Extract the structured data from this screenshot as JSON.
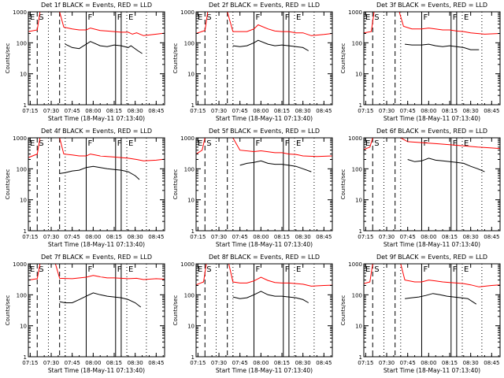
{
  "panels": [
    {
      "title": "Det 1f BLACK = Events, RED = LLD"
    },
    {
      "title": "Det 2f BLACK = Events, RED = LLD"
    },
    {
      "title": "Det 3f BLACK = Events, RED = LLD"
    },
    {
      "title": "Det 4f BLACK = Events, RED = LLD"
    },
    {
      "title": "Det 5f BLACK = Events, RED = LLD"
    },
    {
      "title": "Det 6f BLACK = Events, RED = LLD"
    },
    {
      "title": "Det 7f BLACK = Events, RED = LLD"
    },
    {
      "title": "Det 8f BLACK = Events, RED = LLD"
    },
    {
      "title": "Det 9f BLACK = Events, RED = LLD"
    }
  ],
  "chart_data": {
    "type": "line",
    "xlabel": "Start Time (18-May-11 07:13:40)",
    "ylabel": "Counts/sec",
    "y_scale": "log",
    "xlim": [
      "07:13:40",
      "08:51:00"
    ],
    "ylim": [
      1,
      1000
    ],
    "x_ticks": [
      "07:15",
      "07:30",
      "07:45",
      "08:00",
      "08:15",
      "08:30",
      "08:45"
    ],
    "y_ticks": [
      "1",
      "10",
      "100",
      "1000"
    ],
    "colors": {
      "events": "#000000",
      "lld": "#ff0000"
    },
    "markers": [
      {
        "label": "E",
        "time": "07:13:40",
        "style": "dotted"
      },
      {
        "label": "S",
        "time": "07:20",
        "style": "dashed"
      },
      {
        "label": "",
        "time": "07:28",
        "style": "dotted"
      },
      {
        "label": "",
        "time": "07:36",
        "style": "dashed"
      },
      {
        "label": "",
        "time": "07:40",
        "style": "dotted"
      },
      {
        "label": "F",
        "time": "07:55",
        "style": "solid"
      },
      {
        "label": "F",
        "time": "08:16",
        "style": "solid"
      },
      {
        "label": "",
        "time": "08:20",
        "style": "solid"
      },
      {
        "label": "E",
        "time": "08:24",
        "style": "dotted"
      },
      {
        "label": "",
        "time": "08:38",
        "style": "dotted"
      }
    ],
    "series": [
      {
        "detector": "1f",
        "lld_x": [
          "07:13:40",
          "07:20",
          "07:22",
          "07:24",
          "07:36",
          "07:39",
          "07:45",
          "07:50",
          "07:55",
          "07:58",
          "08:05",
          "08:10",
          "08:15",
          "08:20",
          "08:25",
          "08:28",
          "08:31",
          "08:36",
          "08:45",
          "08:51"
        ],
        "lld_y": [
          230,
          260,
          1200,
          1200,
          1200,
          320,
          280,
          260,
          260,
          300,
          250,
          240,
          230,
          220,
          220,
          190,
          210,
          170,
          190,
          205
        ],
        "events_x": [
          "07:40",
          "07:45",
          "07:50",
          "07:55",
          "07:58",
          "08:05",
          "08:10",
          "08:15",
          "08:20",
          "08:25",
          "08:27",
          "08:32",
          "08:35"
        ],
        "events_y": [
          90,
          70,
          65,
          90,
          110,
          80,
          75,
          85,
          80,
          70,
          80,
          55,
          45
        ]
      },
      {
        "detector": "2f",
        "lld_x": [
          "07:13:40",
          "07:20",
          "07:22",
          "07:24",
          "07:36",
          "07:40",
          "07:45",
          "07:50",
          "07:55",
          "07:58",
          "08:05",
          "08:10",
          "08:15",
          "08:20",
          "08:25",
          "08:30",
          "08:36",
          "08:45",
          "08:51"
        ],
        "lld_y": [
          200,
          250,
          1200,
          1200,
          1200,
          230,
          230,
          230,
          280,
          380,
          280,
          240,
          230,
          230,
          210,
          210,
          170,
          185,
          200
        ],
        "events_x": [
          "07:40",
          "07:45",
          "07:50",
          "07:55",
          "07:58",
          "08:05",
          "08:10",
          "08:15",
          "08:20",
          "08:25",
          "08:30",
          "08:34"
        ],
        "events_y": [
          80,
          75,
          80,
          100,
          120,
          90,
          80,
          85,
          80,
          75,
          70,
          55
        ]
      },
      {
        "detector": "3f",
        "lld_x": [
          "07:13:40",
          "07:19",
          "07:21",
          "07:23",
          "07:39",
          "07:42",
          "07:48",
          "07:55",
          "08:00",
          "08:10",
          "08:15",
          "08:20",
          "08:25",
          "08:30",
          "08:40",
          "08:51"
        ],
        "lld_y": [
          210,
          230,
          1200,
          1200,
          1200,
          340,
          280,
          280,
          300,
          260,
          260,
          240,
          230,
          210,
          190,
          200
        ],
        "events_x": [
          "07:43",
          "07:48",
          "07:55",
          "08:00",
          "08:05",
          "08:10",
          "08:15",
          "08:20",
          "08:25",
          "08:30",
          "08:36"
        ],
        "events_y": [
          90,
          85,
          85,
          90,
          80,
          75,
          80,
          75,
          70,
          60,
          60
        ]
      },
      {
        "detector": "4f",
        "lld_x": [
          "07:13:40",
          "07:20",
          "07:22",
          "07:24",
          "07:36",
          "07:39",
          "07:45",
          "07:50",
          "07:55",
          "07:58",
          "08:05",
          "08:10",
          "08:15",
          "08:20",
          "08:25",
          "08:31",
          "08:36",
          "08:45",
          "08:51"
        ],
        "lld_y": [
          230,
          300,
          1200,
          1200,
          1200,
          300,
          280,
          260,
          260,
          300,
          260,
          250,
          240,
          230,
          220,
          200,
          180,
          190,
          205
        ],
        "events_x": [
          "07:36",
          "07:40",
          "07:45",
          "07:50",
          "07:55",
          "08:00",
          "08:05",
          "08:10",
          "08:15",
          "08:20",
          "08:25",
          "08:30",
          "08:33"
        ],
        "events_y": [
          70,
          75,
          85,
          90,
          110,
          120,
          110,
          100,
          95,
          90,
          80,
          60,
          45
        ]
      },
      {
        "detector": "5f",
        "lld_x": [
          "07:13:40",
          "07:18",
          "07:20",
          "07:22",
          "07:40",
          "07:45",
          "07:55",
          "08:00",
          "08:10",
          "08:15",
          "08:20",
          "08:25",
          "08:30",
          "08:40",
          "08:51"
        ],
        "lld_y": [
          300,
          400,
          1200,
          1200,
          1200,
          400,
          360,
          380,
          330,
          330,
          300,
          290,
          260,
          250,
          260
        ],
        "events_x": [
          "07:45",
          "07:50",
          "07:55",
          "08:00",
          "08:05",
          "08:10",
          "08:15",
          "08:20",
          "08:25",
          "08:30",
          "08:36"
        ],
        "events_y": [
          130,
          150,
          160,
          180,
          150,
          140,
          140,
          130,
          120,
          100,
          80
        ]
      },
      {
        "detector": "6f",
        "lld_x": [
          "07:13:40",
          "07:18",
          "07:20",
          "07:22",
          "07:40",
          "07:45",
          "07:55",
          "08:05",
          "08:15",
          "08:25",
          "08:35",
          "08:45",
          "08:51"
        ],
        "lld_y": [
          420,
          500,
          1200,
          1200,
          1200,
          750,
          700,
          650,
          600,
          550,
          500,
          470,
          450
        ],
        "events_x": [
          "07:45",
          "07:50",
          "07:55",
          "08:00",
          "08:05",
          "08:10",
          "08:15",
          "08:20",
          "08:25",
          "08:30",
          "08:35",
          "08:40"
        ],
        "events_y": [
          200,
          170,
          180,
          220,
          190,
          180,
          170,
          160,
          150,
          120,
          100,
          80
        ]
      },
      {
        "detector": "7f",
        "lld_x": [
          "07:13:40",
          "07:20",
          "07:22",
          "07:24",
          "07:33",
          "07:36",
          "07:45",
          "07:55",
          "08:00",
          "08:05",
          "08:10",
          "08:15",
          "08:20",
          "08:25",
          "08:31",
          "08:36",
          "08:45",
          "08:51"
        ],
        "lld_y": [
          300,
          330,
          1200,
          1200,
          1200,
          340,
          330,
          370,
          420,
          380,
          350,
          350,
          340,
          330,
          340,
          310,
          330,
          320
        ],
        "events_x": [
          "07:36",
          "07:40",
          "07:45",
          "07:50",
          "07:55",
          "08:00",
          "08:05",
          "08:10",
          "08:15",
          "08:20",
          "08:25",
          "08:30",
          "08:34"
        ],
        "events_y": [
          60,
          55,
          55,
          70,
          90,
          115,
          100,
          90,
          85,
          80,
          70,
          55,
          40
        ]
      },
      {
        "detector": "8f",
        "lld_x": [
          "07:13:40",
          "07:19",
          "07:21",
          "07:23",
          "07:37",
          "07:40",
          "07:45",
          "07:50",
          "07:55",
          "08:00",
          "08:05",
          "08:10",
          "08:15",
          "08:20",
          "08:25",
          "08:30",
          "08:36",
          "08:45",
          "08:51"
        ],
        "lld_y": [
          210,
          260,
          1200,
          1200,
          1200,
          260,
          240,
          240,
          280,
          370,
          290,
          250,
          240,
          240,
          230,
          220,
          190,
          200,
          205
        ],
        "events_x": [
          "07:40",
          "07:45",
          "07:50",
          "07:55",
          "08:00",
          "08:05",
          "08:10",
          "08:15",
          "08:20",
          "08:25",
          "08:30",
          "08:34"
        ],
        "events_y": [
          85,
          75,
          80,
          100,
          130,
          100,
          90,
          90,
          85,
          80,
          70,
          55
        ]
      },
      {
        "detector": "9f",
        "lld_x": [
          "07:13:40",
          "07:18",
          "07:20",
          "07:22",
          "07:40",
          "07:43",
          "07:50",
          "07:55",
          "08:00",
          "08:05",
          "08:10",
          "08:15",
          "08:20",
          "08:25",
          "08:30",
          "08:36",
          "08:45",
          "08:51"
        ],
        "lld_y": [
          230,
          260,
          1200,
          1200,
          1200,
          300,
          260,
          260,
          300,
          280,
          260,
          250,
          240,
          230,
          210,
          180,
          200,
          210
        ],
        "events_x": [
          "07:43",
          "07:48",
          "07:53",
          "07:58",
          "08:03",
          "08:08",
          "08:13",
          "08:18",
          "08:23",
          "08:28",
          "08:34"
        ],
        "events_y": [
          75,
          80,
          85,
          95,
          110,
          100,
          90,
          85,
          80,
          75,
          50
        ]
      }
    ]
  }
}
